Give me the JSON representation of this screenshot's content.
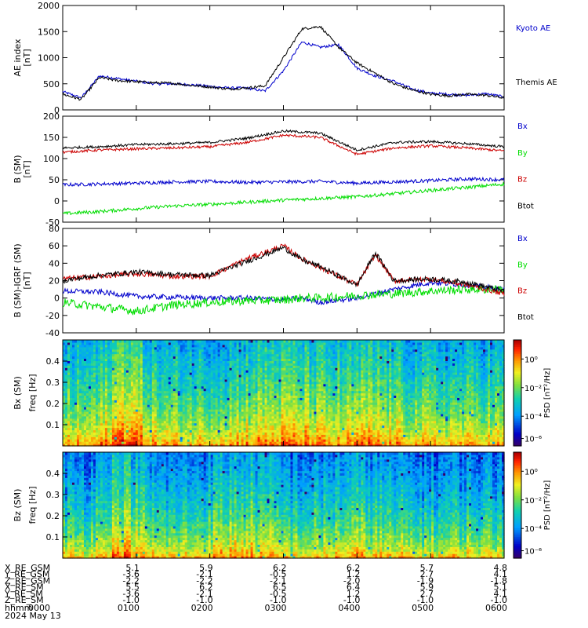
{
  "figure": {
    "date_label": "2024 May 13",
    "time_axis_label": "hhmm",
    "time_ticks": [
      "0000",
      "0100",
      "0200",
      "0300",
      "0400",
      "0500",
      "0600"
    ]
  },
  "chart_data": [
    {
      "type": "line",
      "ylabel": "AE index",
      "yunit": "[nT]",
      "ylim": [
        0,
        2000
      ],
      "yticks": [
        "0",
        "500",
        "1000",
        "1500",
        "2000"
      ],
      "x_hours": [
        0,
        0.25,
        0.5,
        0.75,
        1.0,
        1.25,
        1.5,
        1.75,
        2.0,
        2.25,
        2.5,
        2.75,
        3.0,
        3.25,
        3.5,
        3.75,
        4.0,
        4.25,
        4.5,
        4.75,
        5.0,
        5.25,
        5.5,
        5.75,
        6.0
      ],
      "series": [
        {
          "name": "Kyoto AE",
          "color": "#0000cc",
          "values": [
            350,
            230,
            650,
            600,
            550,
            500,
            500,
            480,
            450,
            420,
            420,
            360,
            750,
            1300,
            1200,
            1250,
            800,
            650,
            550,
            400,
            320,
            300,
            280,
            310,
            250
          ]
        },
        {
          "name": "Themis AE",
          "color": "#000000",
          "values": [
            300,
            200,
            620,
            560,
            540,
            520,
            510,
            470,
            440,
            400,
            420,
            460,
            1000,
            1550,
            1600,
            1200,
            900,
            700,
            500,
            380,
            300,
            270,
            300,
            280,
            230
          ]
        }
      ]
    },
    {
      "type": "line",
      "ylabel": "B (SM)",
      "yunit": "[nT]",
      "ylim": [
        -50,
        200
      ],
      "yticks": [
        "-50",
        "0",
        "50",
        "100",
        "150",
        "200"
      ],
      "x_hours": [
        0,
        0.5,
        1.0,
        1.5,
        2.0,
        2.5,
        3.0,
        3.5,
        4.0,
        4.5,
        5.0,
        5.5,
        6.0
      ],
      "series": [
        {
          "name": "Bx",
          "color": "#0000cc",
          "values": [
            38,
            40,
            42,
            45,
            46,
            44,
            45,
            46,
            42,
            45,
            48,
            52,
            50
          ]
        },
        {
          "name": "By",
          "color": "#00dd00",
          "values": [
            -30,
            -25,
            -18,
            -12,
            -8,
            -3,
            2,
            6,
            10,
            17,
            25,
            32,
            40
          ]
        },
        {
          "name": "Bz",
          "color": "#cc0000",
          "values": [
            115,
            120,
            123,
            125,
            128,
            138,
            155,
            150,
            110,
            125,
            130,
            125,
            118
          ]
        },
        {
          "name": "Btot",
          "color": "#000000",
          "values": [
            125,
            128,
            133,
            135,
            138,
            148,
            165,
            160,
            120,
            138,
            140,
            135,
            128
          ]
        }
      ],
      "legend": [
        "Bx",
        "By",
        "Bz",
        "Btot"
      ]
    },
    {
      "type": "line",
      "ylabel": "B (SM)-IGRF (SM)",
      "yunit": "[nT]",
      "ylim": [
        -40,
        80
      ],
      "yticks": [
        "-40",
        "-20",
        "0",
        "20",
        "40",
        "60",
        "80"
      ],
      "x_hours": [
        0,
        0.5,
        1.0,
        1.5,
        2.0,
        2.5,
        3.0,
        3.25,
        3.5,
        4.0,
        4.25,
        4.5,
        5.0,
        5.5,
        6.0
      ],
      "series": [
        {
          "name": "Bx",
          "color": "#0000cc",
          "values": [
            8,
            7,
            2,
            1,
            0,
            0,
            -2,
            0,
            -5,
            0,
            5,
            10,
            18,
            15,
            10
          ]
        },
        {
          "name": "By",
          "color": "#00dd00",
          "values": [
            -5,
            -10,
            -15,
            -8,
            -5,
            -3,
            -2,
            0,
            0,
            3,
            4,
            5,
            8,
            10,
            10
          ]
        },
        {
          "name": "Bz",
          "color": "#cc0000",
          "values": [
            22,
            25,
            28,
            25,
            25,
            45,
            60,
            45,
            35,
            15,
            50,
            20,
            22,
            15,
            5
          ]
        },
        {
          "name": "Btot",
          "color": "#000000",
          "values": [
            20,
            26,
            30,
            27,
            26,
            42,
            58,
            44,
            36,
            15,
            52,
            20,
            22,
            18,
            8
          ]
        }
      ],
      "legend": [
        "Bx",
        "By",
        "Bz",
        "Btot"
      ]
    },
    {
      "type": "heatmap",
      "ylabel": "Bx (SM)",
      "ylabel2": "freq",
      "yunit": "[Hz]",
      "ylim": [
        0,
        0.5
      ],
      "yticks": [
        "0.1",
        "0.2",
        "0.3",
        "0.4"
      ],
      "colorbar": {
        "label": "PSD [nT²/Hz]",
        "ticks": [
          "10⁰",
          "10⁻²",
          "10⁻⁴",
          "10⁻⁶"
        ]
      }
    },
    {
      "type": "heatmap",
      "ylabel": "Bz (SM)",
      "ylabel2": "freq",
      "yunit": "[Hz]",
      "ylim": [
        0,
        0.5
      ],
      "yticks": [
        "0.1",
        "0.2",
        "0.3",
        "0.4"
      ],
      "colorbar": {
        "label": "PSD [nT²/Hz]",
        "ticks": [
          "10⁰",
          "10⁻²",
          "10⁻⁴",
          "10⁻⁶"
        ]
      }
    }
  ],
  "orbit_table": {
    "rows": [
      {
        "label": "X_RE_GSM",
        "values": [
          "5.1",
          "5.9",
          "6.2",
          "6.2",
          "5.7",
          "4.8"
        ]
      },
      {
        "label": "Y_RE_GSM",
        "values": [
          "-3.6",
          "-2.1",
          "-0.5",
          "1.2",
          "2.7",
          "4.1"
        ]
      },
      {
        "label": "Z_RE_GSM",
        "values": [
          "-2.2",
          "-2.2",
          "-2.1",
          "-2.0",
          "-1.9",
          "-1.8"
        ]
      },
      {
        "label": "X_RE_SM",
        "values": [
          "5.5",
          "6.2",
          "6.5",
          "6.4",
          "5.9",
          "5.1"
        ]
      },
      {
        "label": "Y_RE_SM",
        "values": [
          "-3.6",
          "-2.1",
          "-0.5",
          "1.2",
          "2.7",
          "4.1"
        ]
      },
      {
        "label": "Z_RE_SM",
        "values": [
          "-1.0",
          "-1.0",
          "-1.0",
          "-1.0",
          "-1.0",
          "-1.0"
        ]
      }
    ]
  }
}
